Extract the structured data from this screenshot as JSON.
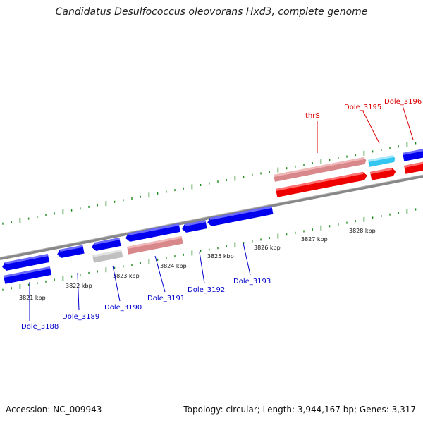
{
  "title": "Candidatus Desulfococcus oleovorans Hxd3, complete genome",
  "accession": "Accession: NC_009943",
  "summary": "Topology: circular; Length: 3,944,167 bp; Genes: 3,317",
  "colors": {
    "forward_gene": "#0000ee",
    "reverse_gene": "#ee0000",
    "forward_label": "#0000cc",
    "reverse_label": "#dd0000",
    "rna_gene": "#d8888a",
    "pseudo_gene": "#c0c0c0",
    "highlight_gene": "#33c6f0",
    "backbone": "#888888",
    "tick": "#1b8a1b"
  },
  "scale_labels": [
    "3821 kbp",
    "3822 kbp",
    "3823 kbp",
    "3824 kbp",
    "3825 kbp",
    "3826 kbp",
    "3827 kbp",
    "3828 kbp"
  ],
  "gene_labels": [
    {
      "text": "Dole_3188",
      "strand": "forward"
    },
    {
      "text": "Dole_3189",
      "strand": "forward"
    },
    {
      "text": "Dole_3190",
      "strand": "forward"
    },
    {
      "text": "Dole_3191",
      "strand": "forward"
    },
    {
      "text": "Dole_3192",
      "strand": "forward"
    },
    {
      "text": "Dole_3193",
      "strand": "forward"
    },
    {
      "text": "thrS",
      "strand": "reverse"
    },
    {
      "text": "Dole_3195",
      "strand": "reverse"
    },
    {
      "text": "Dole_3196",
      "strand": "reverse"
    }
  ]
}
